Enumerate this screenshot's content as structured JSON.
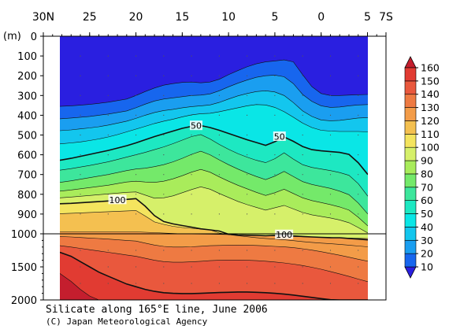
{
  "chart_data": {
    "type": "heatmap",
    "title": "Silicate along 165°E line, June 2006",
    "credit": "(C) Japan Meteorological Agency",
    "x_ticks": [
      "30N",
      "25",
      "20",
      "15",
      "10",
      "5",
      "0",
      "5",
      "7S"
    ],
    "x_tick_values": [
      30,
      25,
      20,
      15,
      10,
      5,
      0,
      -5,
      -7
    ],
    "xlim": [
      30,
      -7
    ],
    "y_unit_label": "(m)",
    "y_ticks_upper": [
      "0",
      "100",
      "200",
      "300",
      "400",
      "500",
      "600",
      "700",
      "800",
      "900",
      "1000"
    ],
    "y_ticks_upper_values": [
      0,
      100,
      200,
      300,
      400,
      500,
      600,
      700,
      800,
      900,
      1000
    ],
    "y_ticks_lower": [
      "1500",
      "2000"
    ],
    "y_ticks_lower_values": [
      1500,
      2000
    ],
    "ylim": [
      0,
      2000
    ],
    "y_break": 1000,
    "levels": [
      10,
      20,
      30,
      40,
      50,
      60,
      70,
      80,
      90,
      100,
      110,
      120,
      130,
      140,
      150,
      160
    ],
    "colorbar_labels": [
      "160",
      "150",
      "140",
      "130",
      "120",
      "110",
      "100",
      "90",
      "80",
      "70",
      "60",
      "50",
      "40",
      "30",
      "20",
      "10"
    ],
    "colors": [
      "#2a1fe0",
      "#1766ee",
      "#1a9ef0",
      "#13c6ee",
      "#0ae6e6",
      "#1de8c2",
      "#3de69c",
      "#74e96a",
      "#a9ec5b",
      "#d6f06a",
      "#f4e45e",
      "#f4c050",
      "#f39c48",
      "#ee7a42",
      "#e9583d",
      "#e13b32",
      "#c41e2e"
    ],
    "data_lons": [
      28,
      27,
      26,
      25,
      24,
      23,
      22,
      21,
      20,
      19,
      18,
      17,
      16,
      15,
      14,
      13,
      12,
      11,
      10,
      9,
      8,
      7,
      6,
      5,
      4,
      3,
      2,
      1,
      0,
      -1,
      -2,
      -3,
      -4,
      -5
    ],
    "contours": [
      {
        "level": 10,
        "depths": [
          355,
          352,
          349,
          345,
          340,
          334,
          326,
          318,
          300,
          280,
          262,
          248,
          240,
          234,
          232,
          236,
          232,
          218,
          195,
          174,
          155,
          140,
          130,
          125,
          120,
          130,
          195,
          255,
          290,
          300,
          300,
          298,
          296,
          295
        ]
      },
      {
        "level": 20,
        "depths": [
          418,
          414,
          410,
          406,
          400,
          394,
          386,
          378,
          362,
          344,
          328,
          318,
          312,
          306,
          300,
          298,
          292,
          276,
          256,
          238,
          222,
          208,
          200,
          197,
          205,
          240,
          295,
          330,
          352,
          360,
          358,
          352,
          348,
          346
        ]
      },
      {
        "level": 30,
        "depths": [
          478,
          474,
          469,
          464,
          458,
          450,
          440,
          430,
          416,
          400,
          386,
          376,
          370,
          362,
          356,
          352,
          348,
          335,
          318,
          302,
          290,
          280,
          276,
          282,
          300,
          336,
          378,
          406,
          424,
          428,
          426,
          420,
          414,
          412
        ]
      },
      {
        "level": 40,
        "depths": [
          545,
          540,
          535,
          528,
          520,
          510,
          498,
          484,
          470,
          456,
          442,
          430,
          420,
          408,
          398,
          392,
          390,
          382,
          372,
          362,
          352,
          346,
          348,
          360,
          382,
          410,
          440,
          462,
          476,
          480,
          482,
          482,
          482,
          484
        ]
      },
      {
        "level": 50,
        "depths": [
          628,
          618,
          608,
          598,
          588,
          578,
          566,
          554,
          540,
          524,
          508,
          494,
          480,
          466,
          456,
          452,
          462,
          476,
          492,
          508,
          524,
          538,
          552,
          534,
          510,
          532,
          558,
          574,
          580,
          584,
          588,
          598,
          640,
          700
        ]
      },
      {
        "level": 60,
        "depths": [
          678,
          670,
          662,
          654,
          645,
          636,
          624,
          612,
          600,
          588,
          574,
          560,
          544,
          526,
          508,
          498,
          520,
          548,
          572,
          594,
          612,
          628,
          640,
          620,
          590,
          622,
          650,
          664,
          672,
          680,
          690,
          704,
          746,
          810
        ]
      },
      {
        "level": 70,
        "depths": [
          740,
          732,
          724,
          716,
          708,
          700,
          690,
          680,
          672,
          668,
          660,
          650,
          636,
          618,
          598,
          582,
          600,
          626,
          650,
          672,
          692,
          710,
          726,
          708,
          684,
          710,
          736,
          750,
          760,
          770,
          784,
          802,
          844,
          900
        ]
      },
      {
        "level": 80,
        "depths": [
          784,
          778,
          772,
          766,
          760,
          754,
          746,
          738,
          734,
          738,
          740,
          734,
          722,
          706,
          688,
          674,
          688,
          712,
          734,
          754,
          772,
          790,
          806,
          792,
          774,
          796,
          818,
          832,
          842,
          852,
          864,
          880,
          916,
          960
        ]
      },
      {
        "level": 90,
        "depths": [
          818,
          814,
          810,
          806,
          802,
          798,
          794,
          790,
          788,
          804,
          820,
          818,
          808,
          792,
          776,
          762,
          774,
          796,
          816,
          836,
          852,
          866,
          880,
          868,
          856,
          874,
          892,
          904,
          912,
          920,
          930,
          944,
          968,
          996
        ]
      },
      {
        "level": 100,
        "depths": [
          848,
          846,
          843,
          840,
          837,
          834,
          830,
          826,
          822,
          860,
          908,
          938,
          950,
          958,
          966,
          975,
          980,
          986,
          1006,
          1018,
          1022,
          1024,
          1030,
          1024,
          1020,
          1032,
          1040,
          1048,
          1054,
          1058,
          1060,
          1070,
          1080,
          1092
        ]
      },
      {
        "level": 110,
        "depths": [
          898,
          896,
          894,
          892,
          890,
          888,
          886,
          884,
          882,
          910,
          940,
          952,
          962,
          968,
          972,
          976,
          980,
          996,
          1012,
          1028,
          1044,
          1058,
          1070,
          1080,
          1090,
          1104,
          1118,
          1130,
          1140,
          1150,
          1160,
          1172,
          1184,
          1196
        ]
      },
      {
        "level": 120,
        "depths": [
          990,
          990,
          990,
          990,
          990,
          990,
          990,
          990,
          990,
          992,
          994,
          996,
          998,
          1000,
          1002,
          1004,
          1006,
          1008,
          1012,
          1016,
          1020,
          1024,
          1028,
          1032,
          1036,
          1040,
          1044,
          1048,
          1052,
          1056,
          1060,
          1064,
          1068,
          1072
        ]
      },
      {
        "level": 130,
        "depths": [
          1040,
          1048,
          1056,
          1064,
          1072,
          1080,
          1090,
          1100,
          1110,
          1140,
          1170,
          1190,
          1200,
          1200,
          1196,
          1188,
          1180,
          1176,
          1172,
          1170,
          1172,
          1176,
          1182,
          1190,
          1198,
          1210,
          1226,
          1246,
          1270,
          1296,
          1324,
          1354,
          1384,
          1414
        ]
      },
      {
        "level": 140,
        "depths": [
          1180,
          1200,
          1220,
          1240,
          1260,
          1280,
          1300,
          1320,
          1340,
          1370,
          1400,
          1420,
          1430,
          1430,
          1424,
          1416,
          1406,
          1400,
          1396,
          1396,
          1400,
          1406,
          1414,
          1426,
          1440,
          1458,
          1480,
          1506,
          1536,
          1570,
          1606,
          1644,
          1684,
          1724
        ]
      },
      {
        "level": 150,
        "depths": [
          1280,
          1340,
          1420,
          1500,
          1580,
          1640,
          1700,
          1760,
          1800,
          1840,
          1870,
          1890,
          1900,
          1904,
          1904,
          1900,
          1894,
          1888,
          1884,
          1880,
          1880,
          1884,
          1890,
          1900,
          1912,
          1926,
          1944,
          1962,
          1980,
          1996,
          2000,
          2000,
          2000,
          2000
        ]
      },
      {
        "level": 160,
        "depths": [
          1600,
          1720,
          1840,
          1940,
          2000,
          2000,
          2000,
          2000,
          2000,
          2000,
          2000,
          2000,
          2000,
          2000,
          2000,
          2000,
          2000,
          2000,
          2000,
          2000,
          2000,
          2000,
          2000,
          2000,
          2000,
          2000,
          2000,
          2000,
          2000,
          2000,
          2000,
          2000,
          2000,
          2000
        ]
      }
    ],
    "contour_labels": [
      {
        "text": "50",
        "lon": 13.5,
        "depth": 455
      },
      {
        "text": "50",
        "lon": 4.5,
        "depth": 510
      },
      {
        "text": "100",
        "lon": 22,
        "depth": 830
      },
      {
        "text": "100",
        "lon": 4,
        "depth": 1020
      }
    ],
    "station_marker_lons": [
      26,
      23,
      20,
      17,
      14,
      11,
      8,
      5,
      2,
      -1,
      -4
    ],
    "station_marker_depths": [
      100,
      200,
      300,
      400,
      500,
      600,
      700,
      800,
      900,
      1250,
      1500,
      1750
    ]
  }
}
